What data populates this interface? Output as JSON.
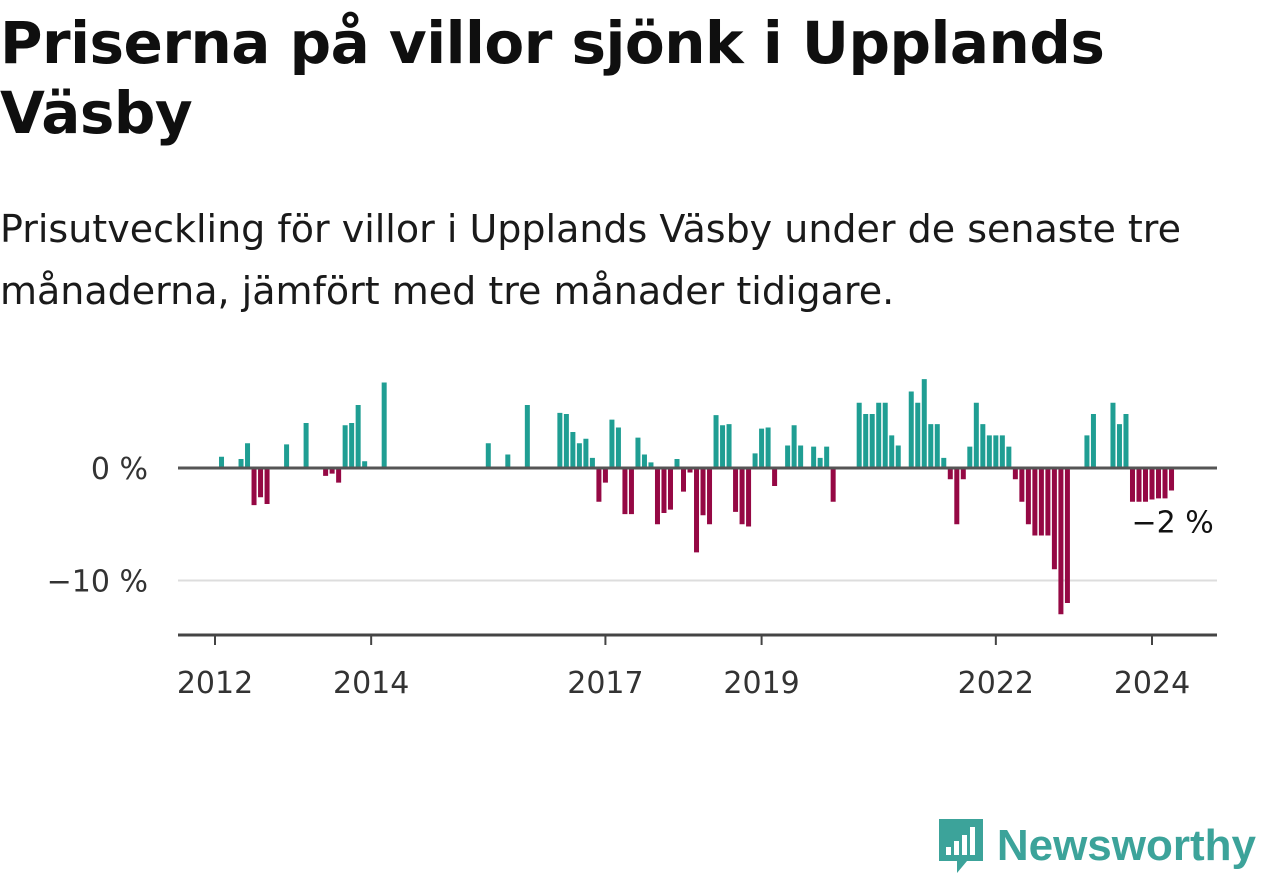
{
  "title": "Priserna på villor sjönk i Upplands Väsby",
  "subtitle": "Prisutveckling för villor i Upplands Väsby under de senaste tre månaderna, jämfört med tre månader tidigare.",
  "brand": "Newsworthy",
  "colors": {
    "positive": "#1f9e93",
    "negative": "#950844",
    "baseline": "#555555",
    "grid": "#dddddd"
  },
  "chart_data": {
    "type": "bar",
    "xlabel": "",
    "ylabel": "",
    "ylim": [
      -15,
      8
    ],
    "grid": true,
    "y_ticks": [
      {
        "value": 0,
        "label": "0 %"
      },
      {
        "value": -10,
        "label": "−10 %"
      }
    ],
    "x_ticks": [
      "2012",
      "2014",
      "2017",
      "2019",
      "2022",
      "2024"
    ],
    "annotation": "−2 %",
    "series": [
      {
        "values": [
          [
            "2012-02",
            1.0
          ],
          [
            "2012-05",
            0.8
          ],
          [
            "2012-06",
            2.2
          ],
          [
            "2012-07",
            -3.3
          ],
          [
            "2012-08",
            -2.6
          ],
          [
            "2012-09",
            -3.2
          ],
          [
            "2012-12",
            2.1
          ],
          [
            "2013-03",
            4.0
          ],
          [
            "2013-06",
            -0.7
          ],
          [
            "2013-07",
            -0.5
          ],
          [
            "2013-08",
            -1.3
          ],
          [
            "2013-09",
            3.8
          ],
          [
            "2013-10",
            4.0
          ],
          [
            "2013-11",
            5.6
          ],
          [
            "2013-12",
            0.6
          ],
          [
            "2014-03",
            7.6
          ],
          [
            "2015-07",
            2.2
          ],
          [
            "2015-10",
            1.2
          ],
          [
            "2016-01",
            5.6
          ],
          [
            "2016-06",
            4.9
          ],
          [
            "2016-07",
            4.8
          ],
          [
            "2016-08",
            3.2
          ],
          [
            "2016-09",
            2.2
          ],
          [
            "2016-10",
            2.6
          ],
          [
            "2016-11",
            0.9
          ],
          [
            "2016-12",
            -3.0
          ],
          [
            "2017-01",
            -1.3
          ],
          [
            "2017-02",
            4.3
          ],
          [
            "2017-03",
            3.6
          ],
          [
            "2017-04",
            -4.1
          ],
          [
            "2017-05",
            -4.1
          ],
          [
            "2017-06",
            2.7
          ],
          [
            "2017-07",
            1.2
          ],
          [
            "2017-08",
            0.5
          ],
          [
            "2017-09",
            -5.0
          ],
          [
            "2017-10",
            -4.0
          ],
          [
            "2017-11",
            -3.7
          ],
          [
            "2017-12",
            0.8
          ],
          [
            "2018-01",
            -2.1
          ],
          [
            "2018-02",
            -0.4
          ],
          [
            "2018-03",
            -7.5
          ],
          [
            "2018-04",
            -4.2
          ],
          [
            "2018-05",
            -5.0
          ],
          [
            "2018-06",
            4.7
          ],
          [
            "2018-07",
            3.8
          ],
          [
            "2018-08",
            3.9
          ],
          [
            "2018-09",
            -3.9
          ],
          [
            "2018-10",
            -5.0
          ],
          [
            "2018-11",
            -5.2
          ],
          [
            "2018-12",
            1.3
          ],
          [
            "2019-01",
            3.5
          ],
          [
            "2019-02",
            3.6
          ],
          [
            "2019-03",
            -1.6
          ],
          [
            "2019-05",
            2.0
          ],
          [
            "2019-06",
            3.8
          ],
          [
            "2019-07",
            2.0
          ],
          [
            "2019-09",
            1.9
          ],
          [
            "2019-10",
            0.9
          ],
          [
            "2019-11",
            1.9
          ],
          [
            "2019-12",
            -3.0
          ],
          [
            "2020-04",
            5.8
          ],
          [
            "2020-05",
            4.8
          ],
          [
            "2020-06",
            4.8
          ],
          [
            "2020-07",
            5.8
          ],
          [
            "2020-08",
            5.8
          ],
          [
            "2020-09",
            2.9
          ],
          [
            "2020-10",
            2.0
          ],
          [
            "2020-12",
            6.8
          ],
          [
            "2021-01",
            5.8
          ],
          [
            "2021-02",
            7.9
          ],
          [
            "2021-03",
            3.9
          ],
          [
            "2021-04",
            3.9
          ],
          [
            "2021-05",
            0.9
          ],
          [
            "2021-06",
            -1.0
          ],
          [
            "2021-07",
            -5.0
          ],
          [
            "2021-08",
            -1.0
          ],
          [
            "2021-09",
            1.9
          ],
          [
            "2021-10",
            5.8
          ],
          [
            "2021-11",
            3.9
          ],
          [
            "2021-12",
            2.9
          ],
          [
            "2022-01",
            2.9
          ],
          [
            "2022-02",
            2.9
          ],
          [
            "2022-03",
            1.9
          ],
          [
            "2022-04",
            -1.0
          ],
          [
            "2022-05",
            -3.0
          ],
          [
            "2022-06",
            -5.0
          ],
          [
            "2022-07",
            -6.0
          ],
          [
            "2022-08",
            -6.0
          ],
          [
            "2022-09",
            -6.0
          ],
          [
            "2022-10",
            -9.0
          ],
          [
            "2022-11",
            -13.0
          ],
          [
            "2022-12",
            -12.0
          ],
          [
            "2023-03",
            2.9
          ],
          [
            "2023-04",
            4.8
          ],
          [
            "2023-07",
            5.8
          ],
          [
            "2023-08",
            3.9
          ],
          [
            "2023-09",
            4.8
          ],
          [
            "2023-10",
            -3.0
          ],
          [
            "2023-11",
            -3.0
          ],
          [
            "2023-12",
            -3.0
          ],
          [
            "2024-01",
            -2.8
          ],
          [
            "2024-02",
            -2.7
          ],
          [
            "2024-03",
            -2.7
          ],
          [
            "2024-04",
            -2.0
          ]
        ]
      }
    ]
  }
}
